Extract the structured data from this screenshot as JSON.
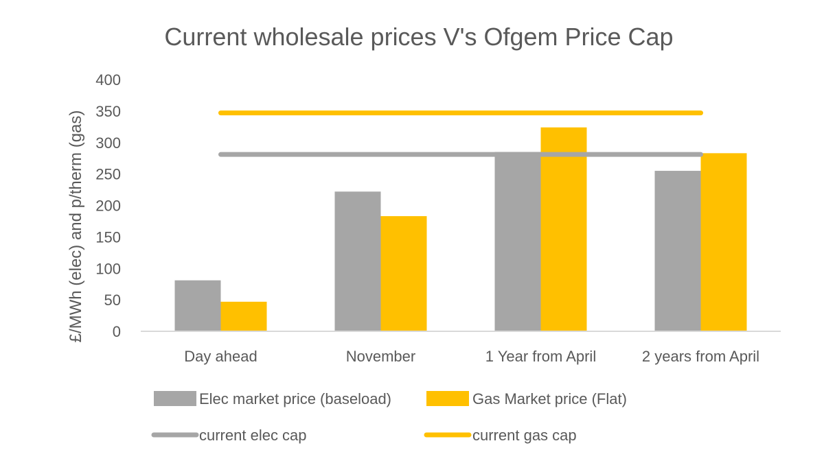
{
  "chart_data": {
    "type": "bar",
    "title": "Current wholesale prices V's Ofgem Price Cap",
    "xlabel": "",
    "ylabel": "£/MWh (elec) and p/therm (gas)",
    "ylim": [
      0,
      400
    ],
    "yticks": [
      0,
      50,
      100,
      150,
      200,
      250,
      300,
      350,
      400
    ],
    "categories": [
      "Day ahead",
      "November",
      "1 Year from April",
      "2 years from April"
    ],
    "series": [
      {
        "name": "Elec market price (baseload)",
        "kind": "bar",
        "color": "#A6A6A6",
        "values": [
          81,
          222,
          285,
          255
        ]
      },
      {
        "name": "Gas Market price (Flat)",
        "kind": "bar",
        "color": "#FFC000",
        "values": [
          47,
          183,
          324,
          283
        ]
      },
      {
        "name": "current elec cap",
        "kind": "line",
        "color": "#A6A6A6",
        "values": [
          281,
          281,
          281,
          281
        ]
      },
      {
        "name": "current gas cap",
        "kind": "line",
        "color": "#FFC000",
        "values": [
          347,
          347,
          347,
          347
        ]
      }
    ],
    "grid": false,
    "legend": "bottom"
  }
}
